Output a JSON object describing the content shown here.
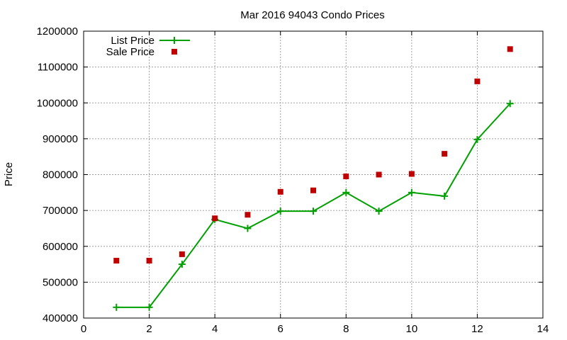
{
  "chart_data": {
    "type": "line",
    "title": "Mar 2016 94043 Condo Prices",
    "xlabel": "",
    "ylabel": "Price",
    "xlim": [
      0,
      14
    ],
    "ylim": [
      400000,
      1200000
    ],
    "xticks": [
      0,
      2,
      4,
      6,
      8,
      10,
      12,
      14
    ],
    "yticks": [
      400000,
      500000,
      600000,
      700000,
      800000,
      900000,
      1000000,
      1100000,
      1200000
    ],
    "grid": true,
    "legend_position": "top-left",
    "series": [
      {
        "name": "List Price",
        "style": "line-points",
        "marker": "plus",
        "color": "#00a000",
        "x": [
          1,
          2,
          3,
          4,
          5,
          6,
          7,
          8,
          9,
          10,
          11,
          12,
          13
        ],
        "y": [
          430000,
          430000,
          550000,
          675000,
          650000,
          698000,
          698000,
          750000,
          698000,
          750000,
          740000,
          898000,
          998000
        ]
      },
      {
        "name": "Sale Price",
        "style": "points",
        "marker": "square",
        "color": "#c00000",
        "x": [
          1,
          2,
          3,
          4,
          5,
          6,
          7,
          8,
          9,
          10,
          11,
          12,
          13
        ],
        "y": [
          560000,
          560000,
          578000,
          678000,
          688000,
          752000,
          756000,
          795000,
          800000,
          802000,
          858000,
          1060000,
          1150000
        ]
      }
    ]
  }
}
